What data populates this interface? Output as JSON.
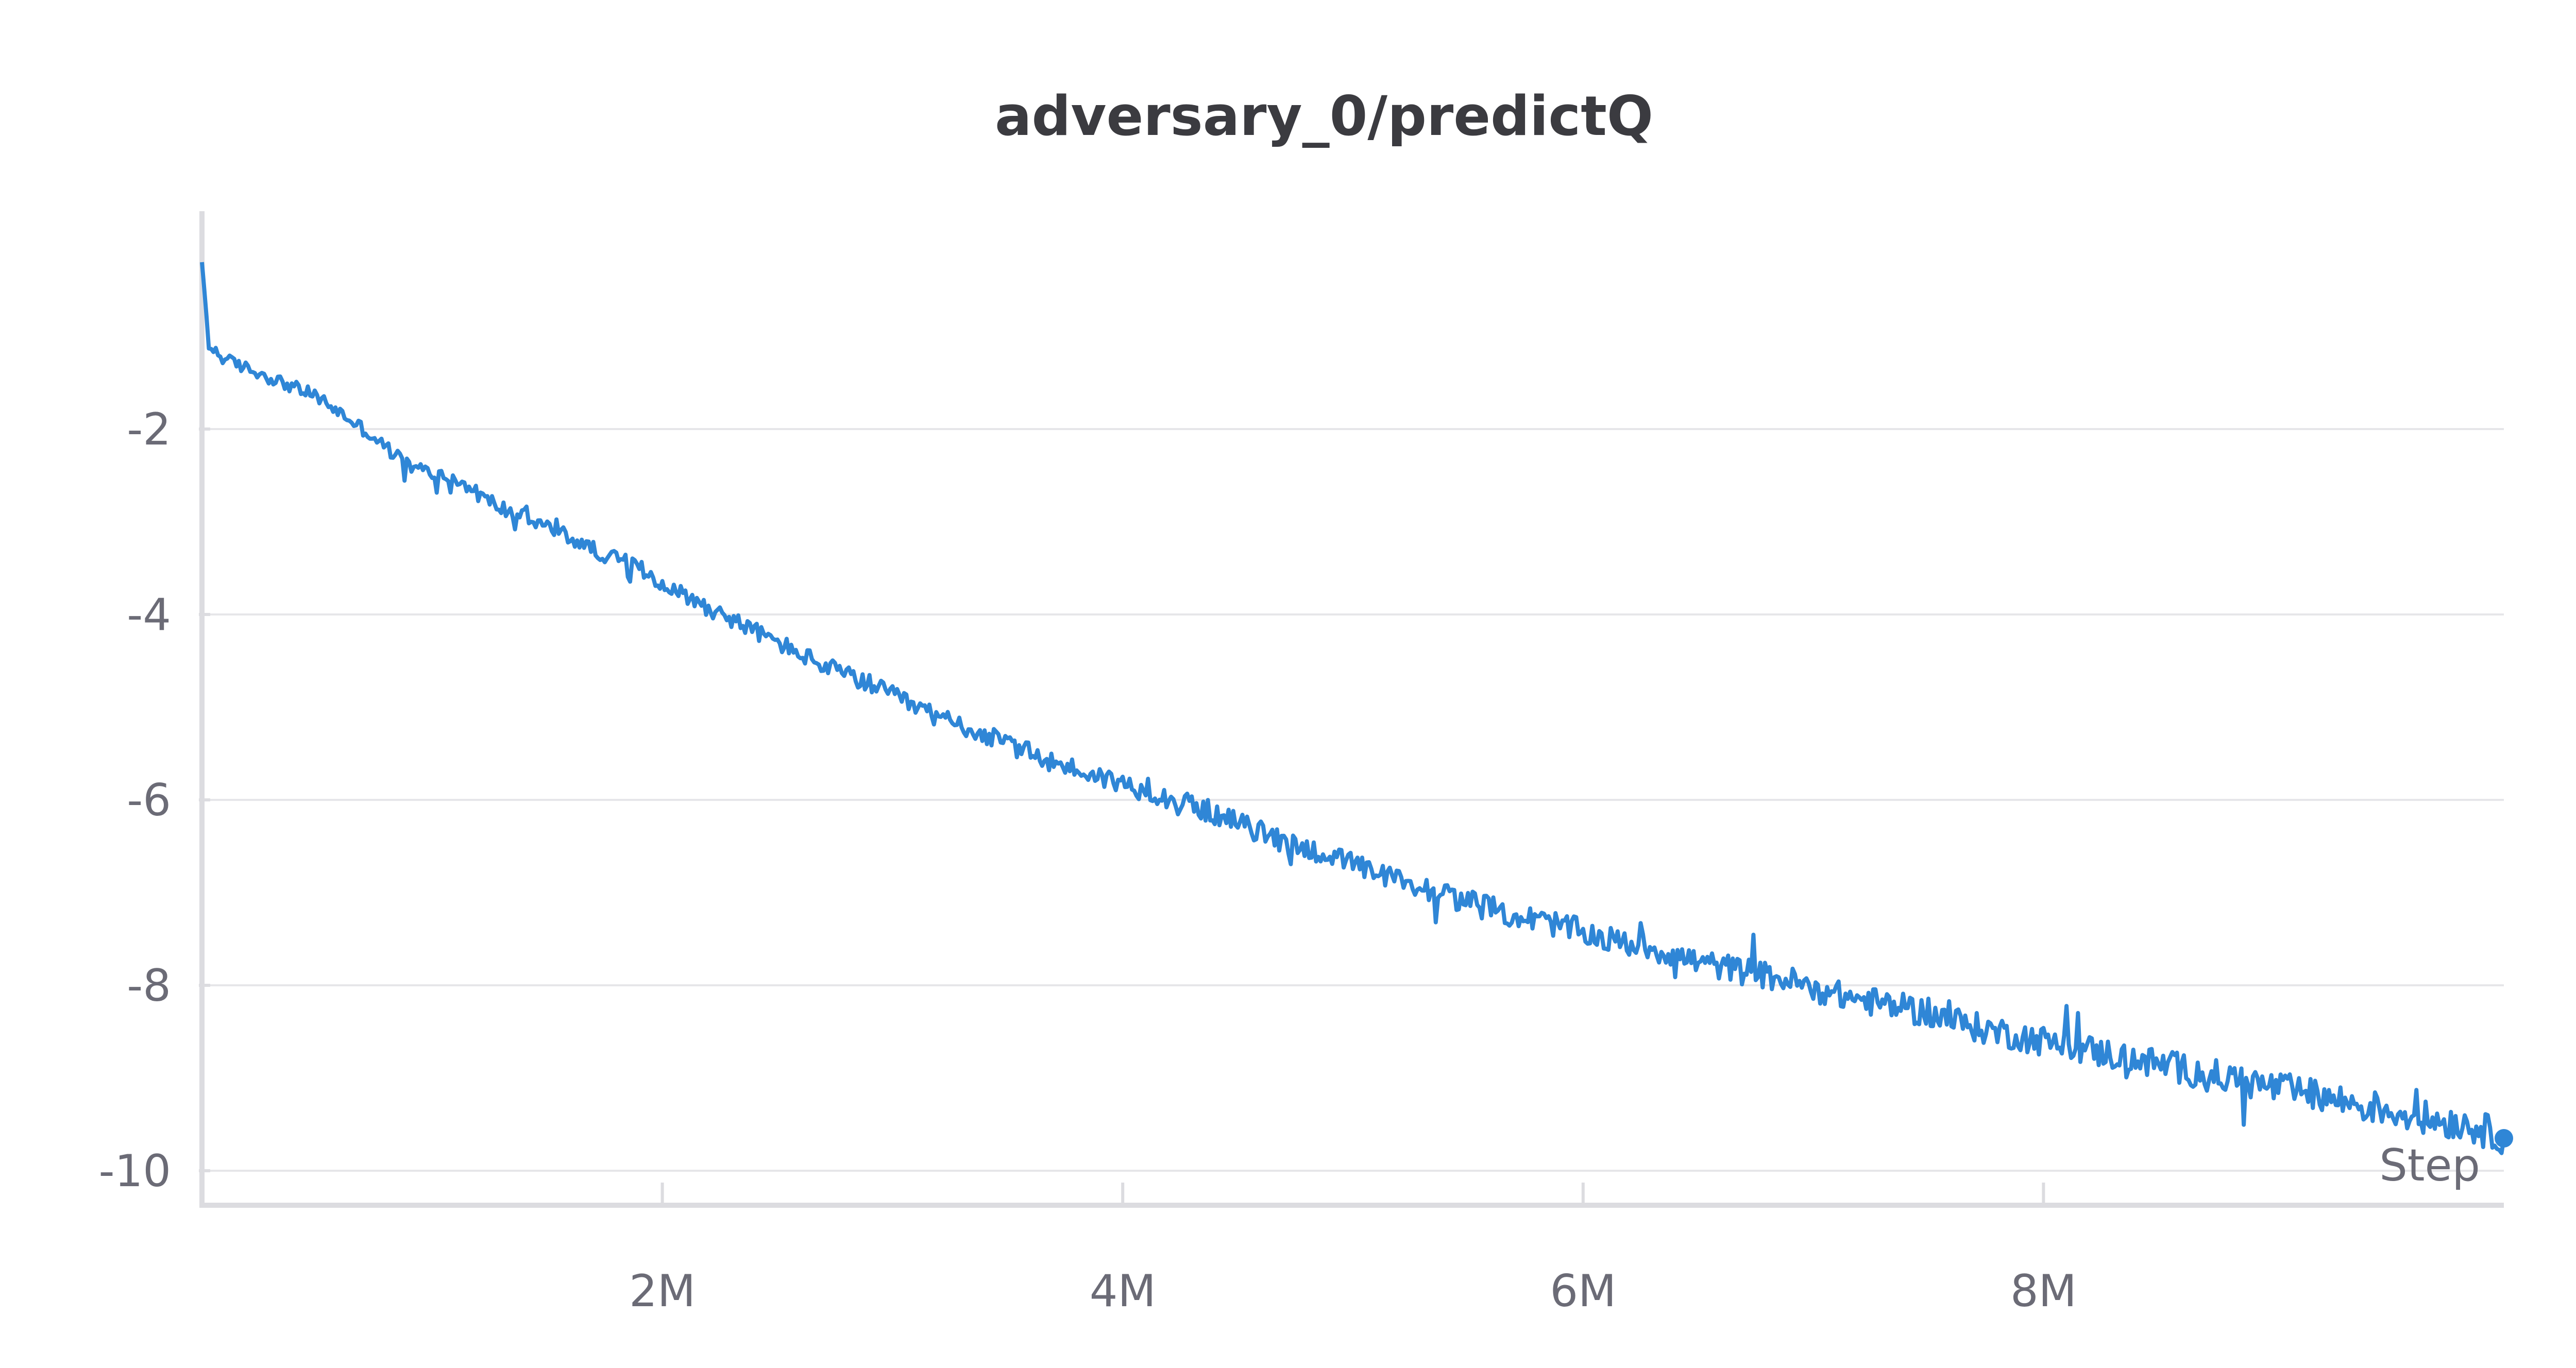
{
  "colors": {
    "line": "#2f86d6",
    "grid": "#e6e6e9",
    "axis": "#dcdce0",
    "text": "#6b6b76",
    "title": "#3b3b40"
  },
  "chart_data": {
    "type": "line",
    "title": "adversary_0/predictQ",
    "xlabel": "Step",
    "ylabel": "",
    "xlim": [
      0,
      10000000
    ],
    "ylim": [
      -10.35,
      0.35
    ],
    "grid": "horizontal",
    "x_ticks": [
      2000000,
      4000000,
      6000000,
      8000000
    ],
    "x_tick_labels": [
      "2M",
      "4M",
      "6M",
      "8M"
    ],
    "y_ticks": [
      -2,
      -4,
      -6,
      -8,
      -10
    ],
    "y_tick_labels": [
      "-2",
      "-4",
      "-6",
      "-8",
      "-10"
    ],
    "series": [
      {
        "x": [
          0,
          30000,
          100000,
          300000,
          500000,
          700000,
          900000,
          1100000,
          1300000,
          1500000,
          1700000,
          1900000,
          2100000,
          2300000,
          2500000,
          2700000,
          2900000,
          3100000,
          3300000,
          3500000,
          3700000,
          3900000,
          4100000,
          4300000,
          4500000,
          4700000,
          4900000,
          5100000,
          5300000,
          5500000,
          5700000,
          5900000,
          6100000,
          6300000,
          6500000,
          6700000,
          6900000,
          7100000,
          7300000,
          7500000,
          7700000,
          7900000,
          8100000,
          8300000,
          8500000,
          8700000,
          8900000,
          9100000,
          9300000,
          9500000,
          9700000,
          9850000,
          10000000
        ],
        "y": [
          -0.2,
          -1.1,
          -1.25,
          -1.45,
          -1.65,
          -2.0,
          -2.4,
          -2.55,
          -2.85,
          -3.05,
          -3.3,
          -3.5,
          -3.8,
          -4.05,
          -4.3,
          -4.55,
          -4.75,
          -5.0,
          -5.2,
          -5.4,
          -5.6,
          -5.75,
          -5.9,
          -6.05,
          -6.25,
          -6.45,
          -6.6,
          -6.8,
          -6.95,
          -7.1,
          -7.25,
          -7.35,
          -7.5,
          -7.6,
          -7.75,
          -7.85,
          -7.95,
          -8.1,
          -8.2,
          -8.3,
          -8.45,
          -8.55,
          -8.65,
          -8.75,
          -8.85,
          -8.95,
          -9.05,
          -9.15,
          -9.25,
          -9.35,
          -9.45,
          -9.5,
          -9.65
        ]
      }
    ]
  }
}
